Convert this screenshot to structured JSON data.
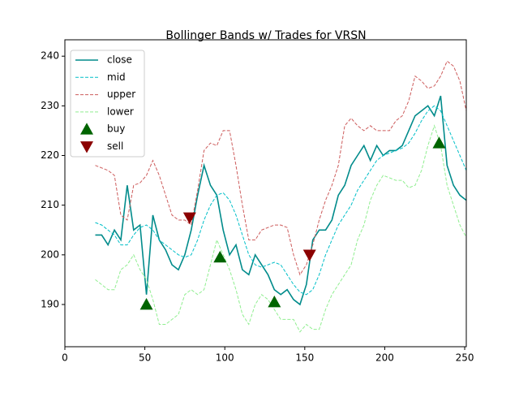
{
  "chart_data": {
    "type": "line",
    "title": "Bollinger Bands w/ Trades for VRSN",
    "x": [
      19,
      23,
      27,
      31,
      35,
      39,
      43,
      47,
      51,
      55,
      59,
      63,
      67,
      71,
      75,
      79,
      83,
      87,
      91,
      95,
      99,
      103,
      107,
      111,
      115,
      119,
      123,
      127,
      131,
      135,
      139,
      143,
      147,
      151,
      155,
      159,
      163,
      167,
      171,
      175,
      179,
      183,
      187,
      191,
      195,
      199,
      203,
      207,
      211,
      215,
      219,
      223,
      227,
      231,
      235,
      239,
      243,
      247,
      251
    ],
    "series": [
      {
        "name": "close",
        "color": "#008b8b",
        "dash": "solid",
        "values": [
          204,
          204,
          202,
          205,
          203,
          214,
          205,
          206,
          192,
          208,
          203,
          201,
          198,
          197,
          200,
          205,
          212,
          218,
          214,
          212,
          205,
          200,
          202,
          197,
          196,
          200,
          198,
          196,
          193,
          192,
          193,
          191,
          190,
          194,
          203,
          205,
          205,
          207,
          212,
          214,
          218,
          220,
          222,
          219,
          222,
          220,
          221,
          221,
          222,
          225,
          228,
          229,
          230,
          228,
          232,
          218,
          214,
          212,
          211
        ]
      },
      {
        "name": "mid",
        "color": "#00bfc8",
        "dash": "dashed",
        "values": [
          206.5,
          206,
          205,
          204,
          202,
          202,
          204,
          205.5,
          206,
          205,
          203,
          202,
          201,
          200,
          199.5,
          200,
          203,
          207,
          210,
          212,
          212.5,
          211,
          208,
          204,
          200,
          198,
          197.5,
          198,
          198.5,
          198,
          196,
          194,
          192.5,
          192,
          193,
          196,
          200,
          203,
          206,
          208,
          210,
          213,
          215,
          217,
          219,
          220,
          220.5,
          221,
          221.5,
          222.5,
          224.5,
          227,
          229,
          230,
          229,
          226,
          223,
          220,
          217
        ]
      },
      {
        "name": "upper",
        "color": "#cd5c5c",
        "dash": "dashed",
        "values": [
          218,
          217.5,
          217,
          216,
          208,
          207,
          214,
          214.5,
          216,
          219,
          216,
          212,
          208,
          207,
          207,
          206,
          213,
          221,
          222.5,
          222,
          225,
          225,
          218,
          210,
          203,
          203,
          205,
          205.5,
          206,
          206,
          205.5,
          200,
          196,
          198,
          202,
          207,
          211,
          214,
          218,
          226,
          227.5,
          226,
          225,
          226,
          225,
          225,
          225,
          227,
          228,
          231,
          236,
          235,
          233.5,
          234,
          236,
          239,
          238,
          235,
          229
        ]
      },
      {
        "name": "lower",
        "color": "#90ee90",
        "dash": "dashed",
        "values": [
          195,
          194,
          193,
          193,
          197,
          198,
          200,
          197,
          195,
          191,
          186,
          186,
          187,
          188,
          192,
          193,
          192,
          193,
          198,
          203,
          200,
          197,
          193,
          188,
          186,
          190,
          192,
          191,
          189,
          187,
          187,
          187,
          184.5,
          186,
          185,
          185,
          189,
          192,
          194,
          196,
          198,
          203,
          206,
          211,
          214,
          216,
          215.5,
          215,
          215,
          213.5,
          214,
          217,
          222,
          226,
          222,
          214,
          210,
          206,
          203.5
        ]
      },
      {
        "name": "buy",
        "color": "#006400",
        "marker": "triangle-up",
        "x": [
          51,
          97,
          131,
          234
        ],
        "values": [
          190,
          199.5,
          190.5,
          222.5
        ]
      },
      {
        "name": "sell",
        "color": "#8b0000",
        "marker": "triangle-down",
        "x": [
          78,
          153
        ],
        "values": [
          207.5,
          200
        ]
      }
    ],
    "xlim": [
      0,
      251
    ],
    "ylim": [
      181.5,
      243.3
    ],
    "xticks": [
      0,
      50,
      100,
      150,
      200,
      250
    ],
    "yticks": [
      190,
      200,
      210,
      220,
      230,
      240
    ],
    "legend": "upper left"
  }
}
